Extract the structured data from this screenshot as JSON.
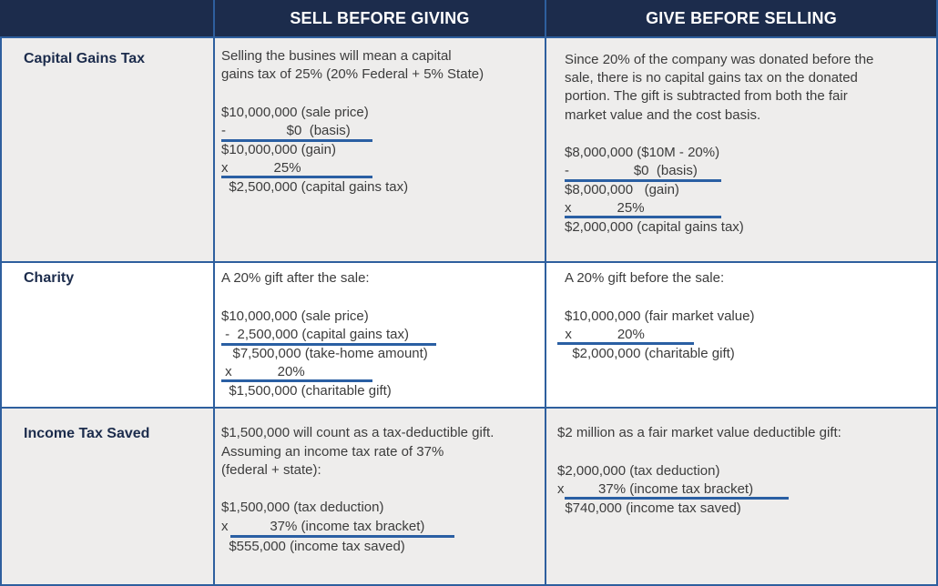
{
  "header": {
    "col1": "SELL BEFORE GIVING",
    "col2": "GIVE BEFORE SELLING"
  },
  "rows": {
    "capital_gains": {
      "label": "Capital Gains Tax",
      "sell": {
        "intro1": "Selling the busines will mean a capital",
        "intro2": "gains tax of 25% (20% Federal + 5% State)",
        "l1": "$10,000,000 (sale price)",
        "l2": "-                $0  (basis)",
        "l3": "$10,000,000 (gain)",
        "l4": "x            25%",
        "l5": "  $2,500,000 (capital gains tax)"
      },
      "give": {
        "intro1": "Since 20% of the company was donated before the",
        "intro2": "sale, there is no capital gains tax on the donated",
        "intro3": "portion. The gift is subtracted from both the fair",
        "intro4": "market value and the cost basis.",
        "l1": "$8,000,000 ($10M - 20%)",
        "l2": "-                 $0  (basis)",
        "l3": "$8,000,000   (gain)",
        "l4": "x            25%",
        "l5": "$2,000,000 (capital gains tax)"
      }
    },
    "charity": {
      "label": "Charity",
      "sell": {
        "intro1": "A 20% gift after the sale:",
        "l1": "$10,000,000 (sale price)",
        "l2": " -  2,500,000 (capital gains tax)",
        "l3": "   $7,500,000 (take-home amount)",
        "l4": " x            20%",
        "l5": "  $1,500,000 (charitable gift)"
      },
      "give": {
        "intro1": "A 20% gift before the sale:",
        "l1": "$10,000,000 (fair market value)",
        "l2": "  x            20%",
        "l3": "  $2,000,000 (charitable gift)"
      }
    },
    "income_tax": {
      "label": "Income Tax Saved",
      "sell": {
        "intro1": "$1,500,000 will count as a tax-deductible gift.",
        "intro2": "Assuming an income tax rate of 37%",
        "intro3": "(federal + state):",
        "l1": "$1,500,000 (tax deduction)",
        "l2": "x           37% (income tax bracket)",
        "l3": "  $555,000 (income tax saved)"
      },
      "give": {
        "intro1": "$2 million as a fair market value deductible gift:",
        "l1": "$2,000,000 (tax deduction)",
        "l2": "x         37% (income tax bracket)",
        "l3": "  $740,000 (income tax saved)"
      }
    }
  }
}
